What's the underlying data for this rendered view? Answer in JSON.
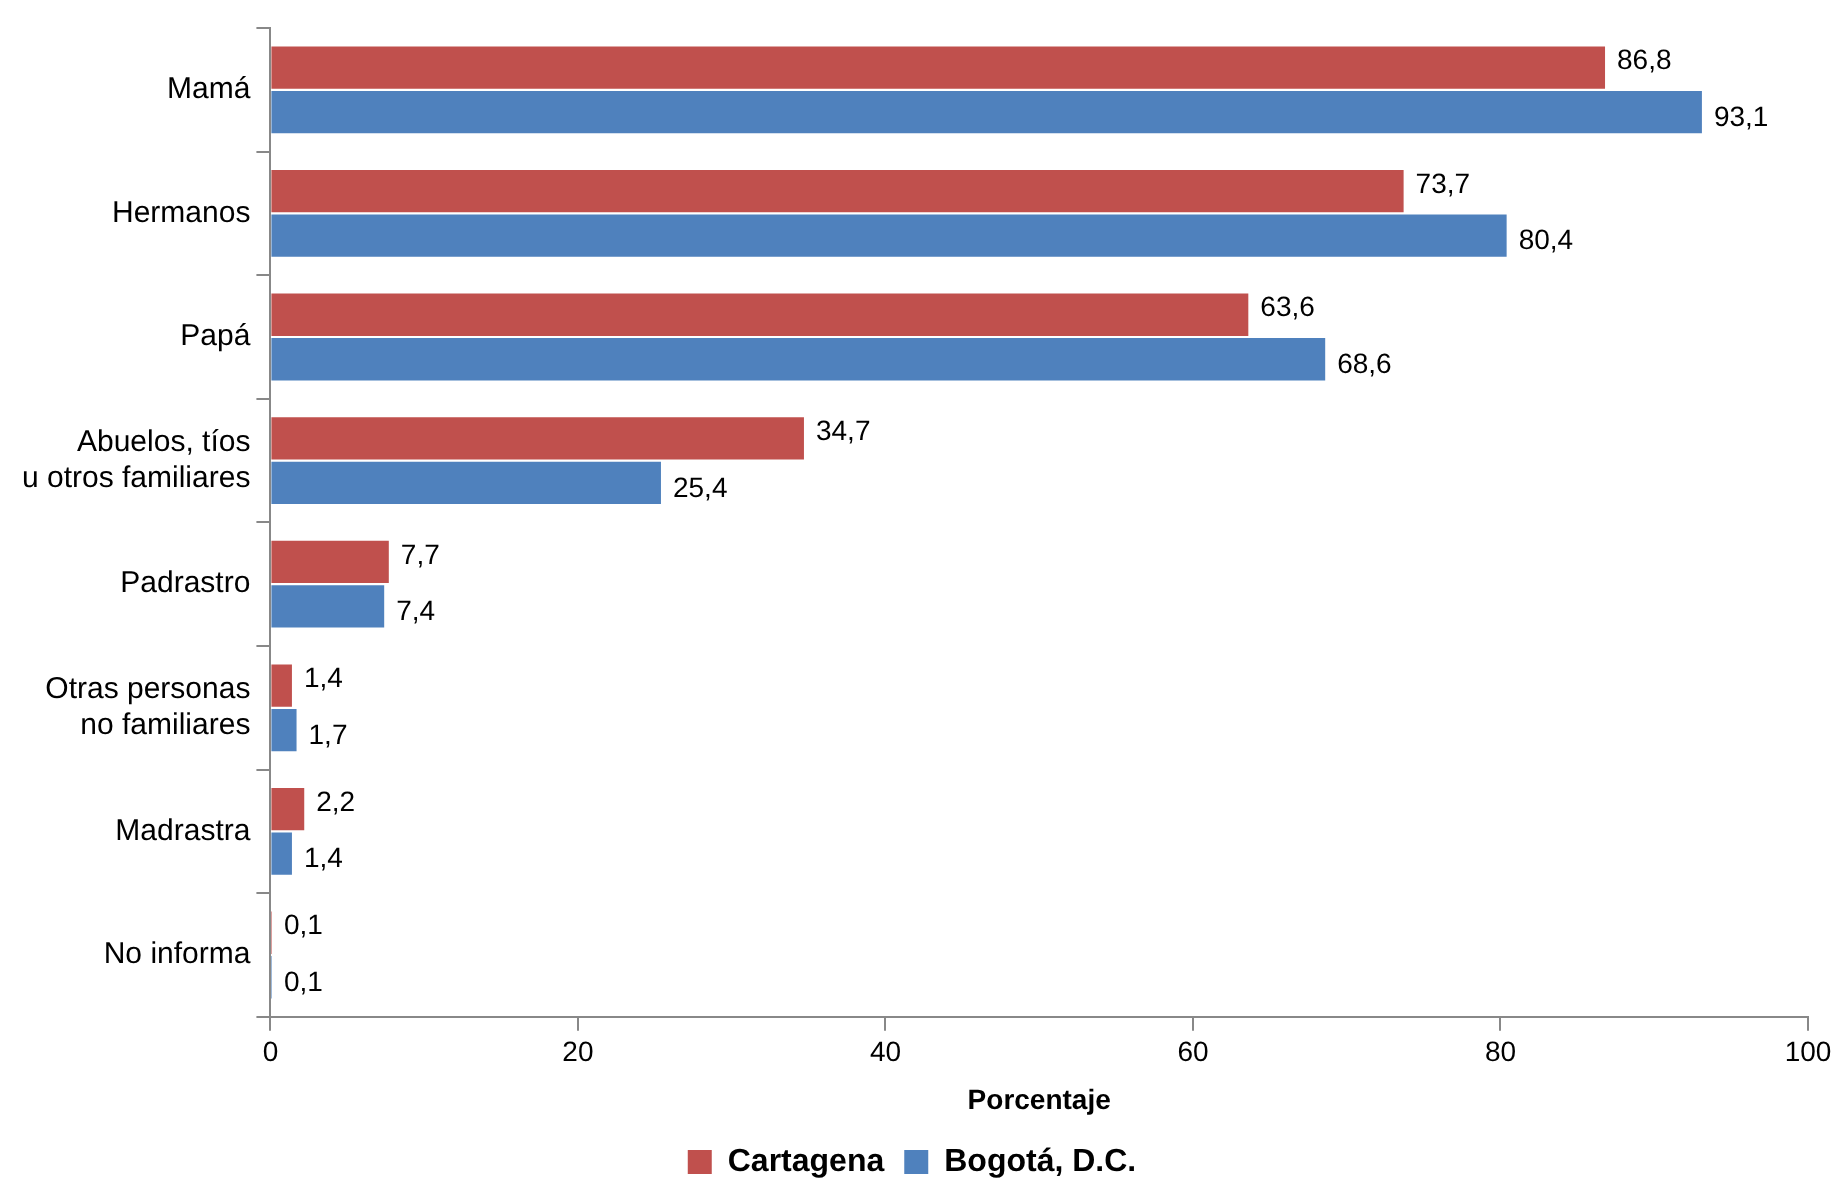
{
  "chart_data": {
    "type": "bar",
    "orientation": "horizontal",
    "xlabel": "Porcentaje",
    "categories": [
      "Mamá",
      "Hermanos",
      "Papá",
      "Abuelos, tíos\nu otros familiares",
      "Padrastro",
      "Otras personas\nno familiares",
      "Madrastra",
      "No informa"
    ],
    "series": [
      {
        "name": "Cartagena",
        "color": "#c0504d",
        "values": [
          86.8,
          73.7,
          63.6,
          34.7,
          7.7,
          1.4,
          2.2,
          0.1
        ],
        "value_labels": [
          "86,8",
          "73,7",
          "63,6",
          "34,7",
          "7,7",
          "1,4",
          "2,2",
          "0,1"
        ]
      },
      {
        "name": "Bogotá, D.C.",
        "color": "#4f81bd",
        "values": [
          93.1,
          80.4,
          68.6,
          25.4,
          7.4,
          1.7,
          1.4,
          0.1
        ],
        "value_labels": [
          "93,1",
          "80,4",
          "68,6",
          "25,4",
          "7,4",
          "1,7",
          "1,4",
          "0,1"
        ]
      }
    ],
    "xlim": [
      0,
      100
    ],
    "xticks": [
      0,
      20,
      40,
      60,
      80,
      100
    ],
    "grid": false,
    "legend": "bottom"
  }
}
